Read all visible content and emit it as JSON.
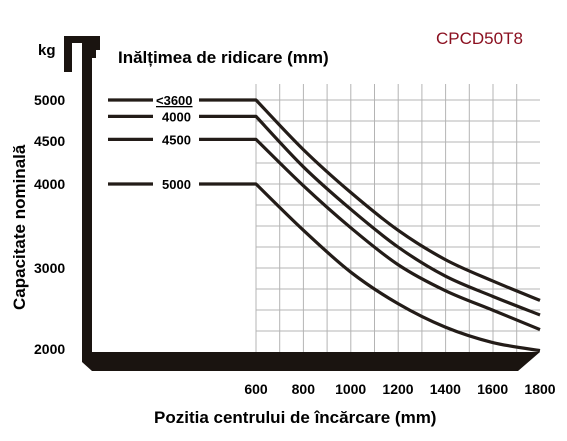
{
  "model": "CPCD50T8",
  "colors": {
    "model": "#8b1020",
    "axis": "#1a1410",
    "curve": "#231c18",
    "grid": "#b4b4b4"
  },
  "chart_data": {
    "type": "line",
    "title": "Inălțimea de ridicare (mm)",
    "unit": "kg",
    "xlabel": "Pozitia centrului de încărcare (mm)",
    "ylabel": "Capacitate nominală",
    "xlim": [
      600,
      1800
    ],
    "ylim": [
      1900,
      5200
    ],
    "x_ticks": [
      "600",
      "800",
      "1000",
      "1200",
      "1400",
      "1600",
      "1800"
    ],
    "y_ticks": [
      "2000",
      "3000",
      "4000",
      "4500",
      "5000"
    ],
    "y_tick_values": [
      2000,
      3000,
      4000,
      4500,
      5000
    ],
    "grid": true,
    "series": [
      {
        "name": "≤3600",
        "values": [
          5000,
          5000,
          4400,
          3900,
          3450,
          3100,
          2840,
          2600
        ]
      },
      {
        "name": "4000",
        "values": [
          4800,
          4800,
          4200,
          3700,
          3250,
          2900,
          2650,
          2420
        ]
      },
      {
        "name": "4500",
        "values": [
          4520,
          4520,
          3980,
          3480,
          3040,
          2720,
          2480,
          2240
        ]
      },
      {
        "name": "5000",
        "values": [
          4000,
          4000,
          3450,
          2950,
          2560,
          2270,
          2080,
          1980
        ]
      }
    ],
    "x": [
      0,
      600,
      800,
      1000,
      1200,
      1400,
      1600,
      1800
    ]
  }
}
